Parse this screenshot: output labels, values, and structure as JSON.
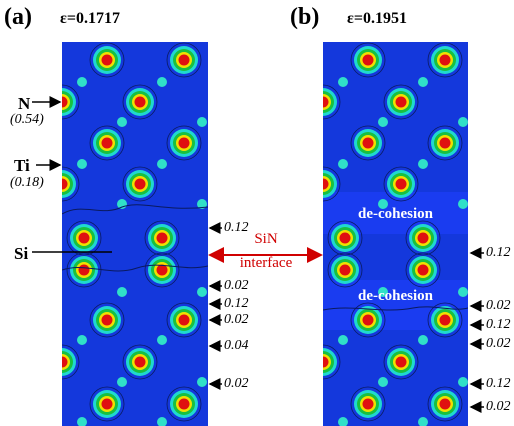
{
  "panels": [
    {
      "label": "(a)",
      "strain": "ε=0.1717"
    },
    {
      "label": "(b)",
      "strain": "ε=0.1951"
    }
  ],
  "left_labels": {
    "n": "N",
    "n_fraction": "(0.54)",
    "ti": "Ti",
    "ti_fraction": "(0.18)",
    "si": "Si"
  },
  "interface_label": {
    "line1": "SiN",
    "line2": "interface"
  },
  "decohesion": [
    "de-cohesion",
    "de-cohesion"
  ],
  "values_a": [
    "0.12",
    "0.02",
    "0.12",
    "0.02",
    "0.04",
    "0.02"
  ],
  "values_b": [
    "0.12",
    "0.02",
    "0.12",
    "0.02",
    "0.12",
    "0.02"
  ],
  "colors": {
    "background": "#1438dc",
    "contour": "#0a1a60",
    "atom_core_red": "#e01010",
    "atom_ring_yellow": "#f0e000",
    "atom_ring_green": "#18c040",
    "n_atom_cyan": "#30e0c8",
    "arrow_red": "#d00000"
  }
}
